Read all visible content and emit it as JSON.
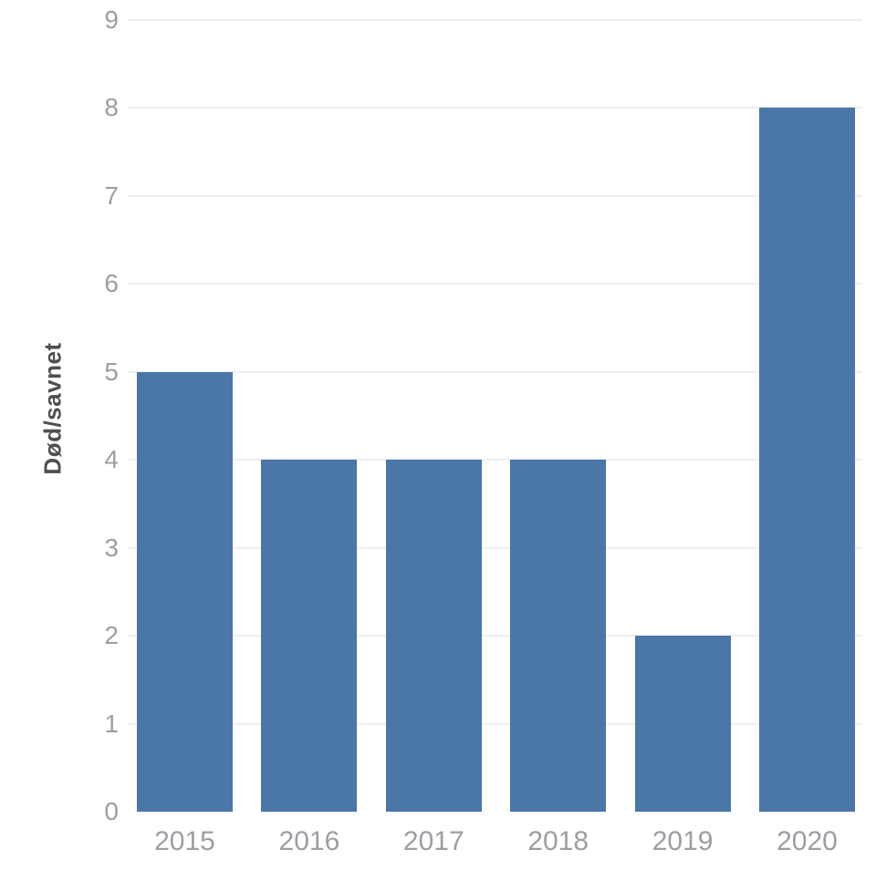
{
  "chart_data": {
    "type": "bar",
    "title": "",
    "categories": [
      "2015",
      "2016",
      "2017",
      "2018",
      "2019",
      "2020"
    ],
    "values": [
      5,
      4,
      4,
      4,
      2,
      8
    ],
    "xlabel": "",
    "ylabel": "Død/savnet",
    "ylim": [
      0,
      9
    ],
    "yticks": [
      0,
      1,
      2,
      3,
      4,
      5,
      6,
      7,
      8,
      9
    ],
    "grid": true,
    "legend": "none",
    "colors": {
      "bar": "#4a76a8",
      "gridline": "#efefef",
      "tick_label": "#9b9fa4",
      "axis_title": "#4f4f4f",
      "background": "#ffffff"
    }
  }
}
